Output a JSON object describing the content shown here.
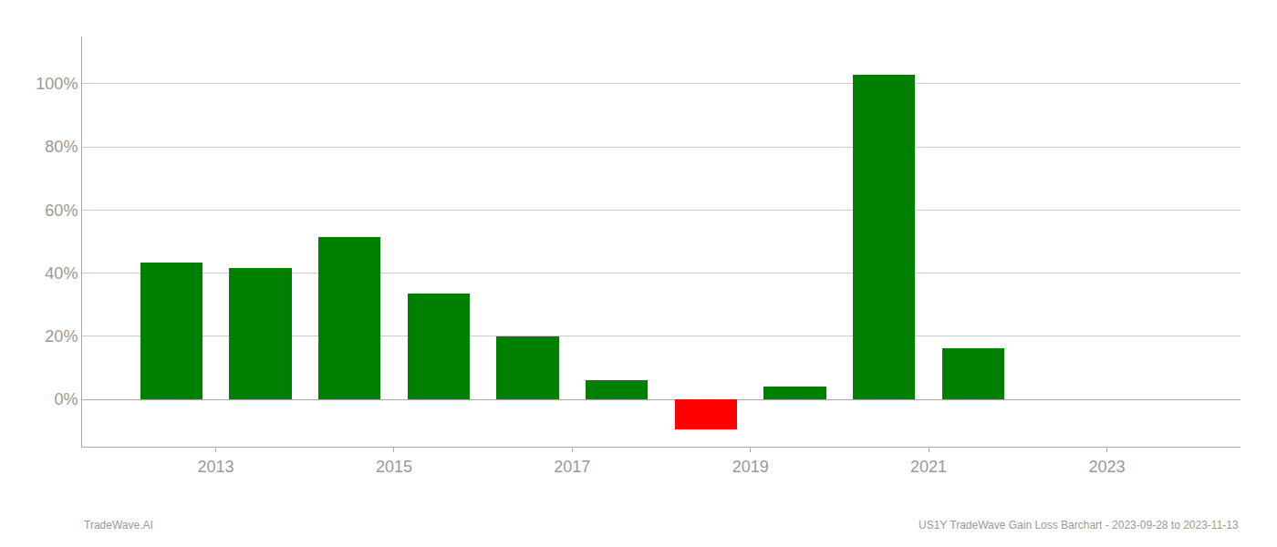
{
  "chart_data": {
    "type": "bar",
    "x": [
      2012.5,
      2013.5,
      2014.5,
      2015.5,
      2016.5,
      2017.5,
      2018.5,
      2019.5,
      2020.5,
      2021.5
    ],
    "values": [
      0.435,
      0.415,
      0.515,
      0.335,
      0.2,
      0.062,
      -0.095,
      0.04,
      1.03,
      0.162
    ],
    "colors": [
      "#008000",
      "#008000",
      "#008000",
      "#008000",
      "#008000",
      "#008000",
      "#ff0000",
      "#008000",
      "#008000",
      "#008000"
    ],
    "xlim": [
      2011.5,
      2024.5
    ],
    "xticks": [
      2013,
      2015,
      2017,
      2019,
      2021,
      2023
    ],
    "ylim": [
      -0.15,
      1.15
    ],
    "yticks": [
      {
        "value": 0.0,
        "label": "0%"
      },
      {
        "value": 0.2,
        "label": "20%"
      },
      {
        "value": 0.4,
        "label": "40%"
      },
      {
        "value": 0.6,
        "label": "60%"
      },
      {
        "value": 0.8,
        "label": "80%"
      },
      {
        "value": 1.0,
        "label": "100%"
      }
    ],
    "grid": true,
    "annotations": [
      "TradeWave.AI",
      "US1Y TradeWave Gain Loss Barchart - 2023-09-28 to 2023-11-13"
    ]
  }
}
